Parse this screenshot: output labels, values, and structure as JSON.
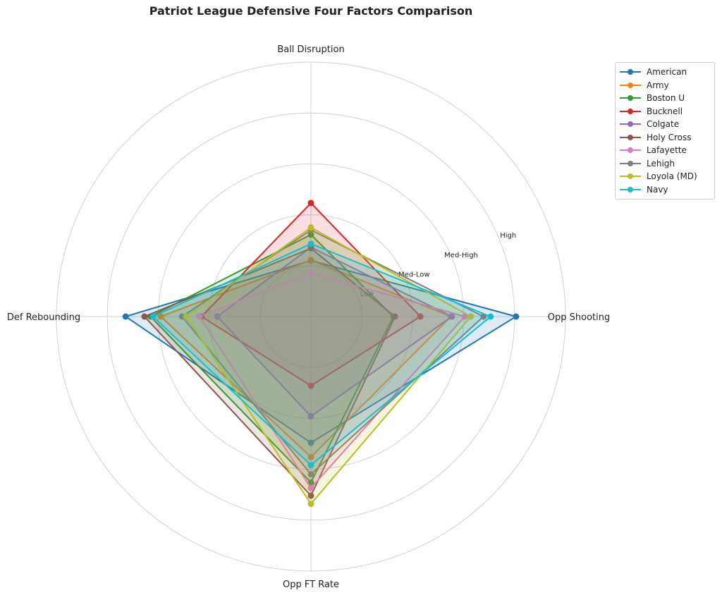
{
  "chart_data": {
    "type": "radar",
    "title": "Patriot League Defensive Four Factors Comparison",
    "categories": [
      "Opp Shooting",
      "Ball Disruption",
      "Def Rebounding",
      "Opp FT Rate"
    ],
    "rlim": [
      0,
      5
    ],
    "rticks": [
      1,
      2,
      3,
      4
    ],
    "rtick_labels": [
      "Low",
      "Med-Low",
      "Med-High",
      "High"
    ],
    "legend_position": "upper-right-outside",
    "series": [
      {
        "name": "American",
        "color": "#1f77b4",
        "values": [
          4.03,
          1.1,
          3.64,
          2.48
        ]
      },
      {
        "name": "Army",
        "color": "#ff7f0e",
        "values": [
          2.75,
          1.11,
          2.95,
          2.76
        ]
      },
      {
        "name": "Boston U",
        "color": "#2ca02c",
        "values": [
          1.62,
          1.61,
          3.15,
          3.26
        ]
      },
      {
        "name": "Bucknell",
        "color": "#d62728",
        "values": [
          2.15,
          2.23,
          2.15,
          1.36
        ]
      },
      {
        "name": "Colgate",
        "color": "#9467bd",
        "values": [
          2.77,
          1.36,
          1.84,
          1.96
        ]
      },
      {
        "name": "Holy Cross",
        "color": "#8c564b",
        "values": [
          1.65,
          1.34,
          3.27,
          3.52
        ]
      },
      {
        "name": "Lafayette",
        "color": "#e377c2",
        "values": [
          3.02,
          0.86,
          2.19,
          3.37
        ]
      },
      {
        "name": "Lehigh",
        "color": "#7f7f7f",
        "values": [
          3.39,
          1.7,
          2.53,
          3.1
        ]
      },
      {
        "name": "Loyola (MD)",
        "color": "#bcbd22",
        "values": [
          3.14,
          1.75,
          2.45,
          3.68
        ]
      },
      {
        "name": "Navy",
        "color": "#17becf",
        "values": [
          3.53,
          1.43,
          3.1,
          2.92
        ]
      }
    ]
  }
}
